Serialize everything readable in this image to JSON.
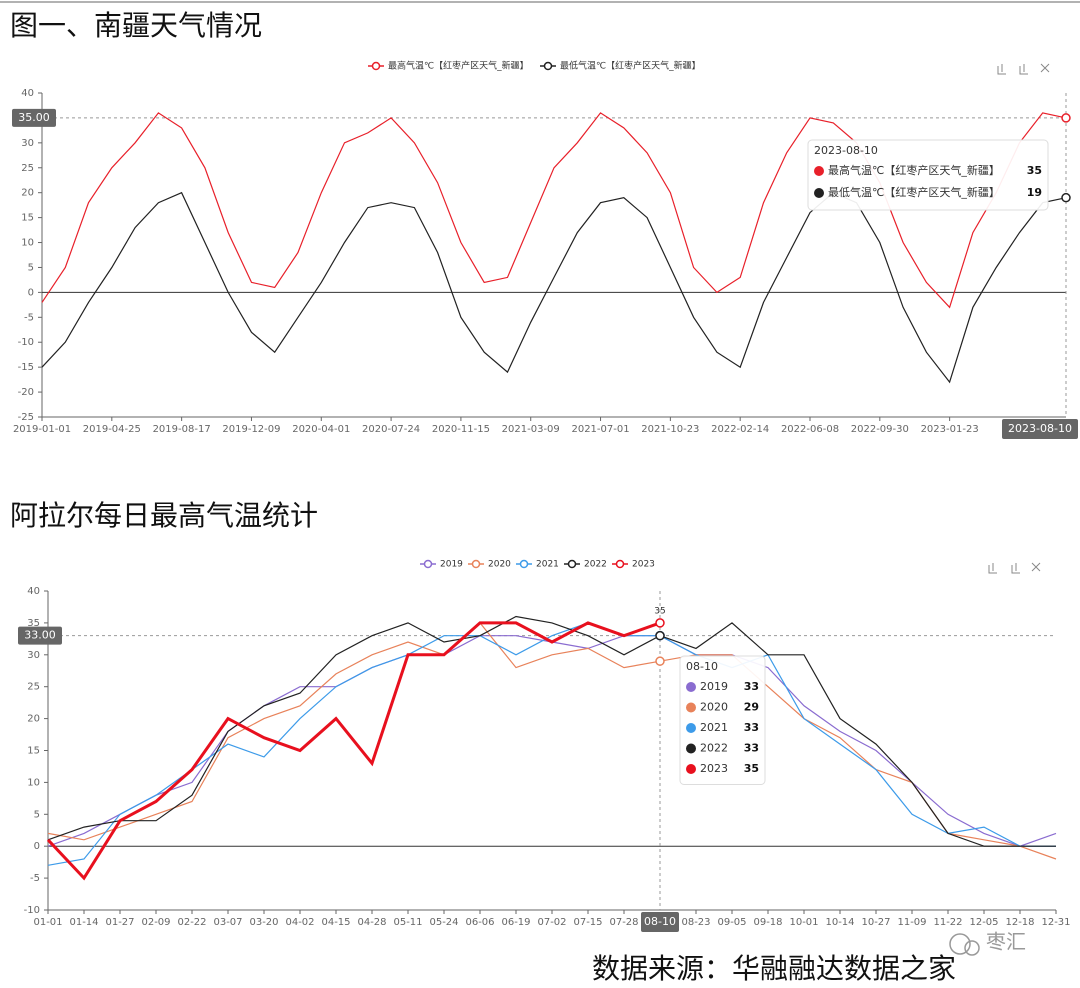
{
  "source": "数据来源：华融融达数据之家",
  "watermark": "枣汇",
  "chart_data": [
    {
      "type": "line",
      "title": "图一、南疆天气情况",
      "categories": [
        "2019-01-01",
        null,
        null,
        "2019-04-25",
        null,
        null,
        "2019-08-17",
        null,
        null,
        "2019-12-09",
        null,
        null,
        "2020-04-01",
        null,
        null,
        "2020-07-24",
        null,
        null,
        "2020-11-15",
        null,
        null,
        "2021-03-09",
        null,
        null,
        "2021-07-01",
        null,
        null,
        "2021-10-23",
        null,
        null,
        "2022-02-14",
        null,
        null,
        "2022-06-08",
        null,
        null,
        "2022-09-30",
        null,
        null,
        "2023-01-23",
        null,
        null,
        null,
        null,
        "2023-08-10"
      ],
      "series": [
        {
          "name": "最高气温℃【红枣产区天气_新疆】",
          "color": "#e8202a",
          "values": [
            -2,
            5,
            18,
            25,
            30,
            36,
            33,
            25,
            12,
            2,
            1,
            8,
            20,
            30,
            32,
            35,
            30,
            22,
            10,
            2,
            3,
            14,
            25,
            30,
            36,
            33,
            28,
            20,
            5,
            0,
            3,
            18,
            28,
            35,
            34,
            30,
            22,
            10,
            2,
            -3,
            12,
            20,
            30,
            36,
            35
          ]
        },
        {
          "name": "最低气温℃【红枣产区天气_新疆】",
          "color": "#222222",
          "values": [
            -15,
            -10,
            -2,
            5,
            13,
            18,
            20,
            10,
            0,
            -8,
            -12,
            -5,
            2,
            10,
            17,
            18,
            17,
            8,
            -5,
            -12,
            -16,
            -6,
            3,
            12,
            18,
            19,
            15,
            5,
            -5,
            -12,
            -15,
            -2,
            7,
            16,
            20,
            18,
            10,
            -3,
            -12,
            -18,
            -3,
            5,
            12,
            18,
            19
          ]
        }
      ],
      "ylim": [
        -25,
        40
      ],
      "yticks": [
        -25,
        -20,
        -15,
        -10,
        -5,
        0,
        5,
        10,
        15,
        20,
        25,
        30,
        35,
        40
      ],
      "axis_pointer": {
        "value": 35,
        "label": "35.00"
      }
    },
    {
      "type": "line",
      "title": "阿拉尔每日最高气温统计",
      "categories": [
        "01-01",
        "01-14",
        "01-27",
        "02-09",
        "02-22",
        "03-07",
        "03-20",
        "04-02",
        "04-15",
        "04-28",
        "05-11",
        "05-24",
        "06-06",
        "06-19",
        "07-02",
        "07-15",
        "07-28",
        "08-10",
        "08-23",
        "09-05",
        "09-18",
        "10-01",
        "10-14",
        "10-27",
        "11-09",
        "11-22",
        "12-05",
        "12-18",
        "12-31"
      ],
      "series": [
        {
          "name": "2019",
          "color": "#8a6cd0",
          "values": [
            0,
            2,
            5,
            8,
            10,
            18,
            22,
            25,
            25,
            28,
            30,
            30,
            33,
            33,
            32,
            31,
            33,
            33,
            30,
            30,
            28,
            22,
            18,
            15,
            10,
            5,
            2,
            0,
            2
          ]
        },
        {
          "name": "2020",
          "color": "#e8825a",
          "values": [
            2,
            1,
            3,
            5,
            7,
            17,
            20,
            22,
            27,
            30,
            32,
            30,
            35,
            28,
            30,
            31,
            28,
            29,
            30,
            30,
            25,
            20,
            17,
            12,
            10,
            2,
            1,
            0,
            -2
          ]
        },
        {
          "name": "2021",
          "color": "#3d9be9",
          "values": [
            -3,
            -2,
            5,
            8,
            12,
            16,
            14,
            20,
            25,
            28,
            30,
            33,
            33,
            30,
            33,
            35,
            33,
            33,
            30,
            28,
            30,
            20,
            16,
            12,
            5,
            2,
            3,
            0,
            0
          ]
        },
        {
          "name": "2022",
          "color": "#222222",
          "values": [
            1,
            3,
            4,
            4,
            8,
            18,
            22,
            24,
            30,
            33,
            35,
            32,
            33,
            36,
            35,
            33,
            30,
            33,
            31,
            35,
            30,
            30,
            20,
            16,
            10,
            2,
            0,
            0,
            0
          ]
        },
        {
          "name": "2023",
          "color": "#e8101e",
          "values": [
            1,
            -5,
            4,
            7,
            12,
            20,
            17,
            15,
            20,
            13,
            30,
            30,
            35,
            35,
            32,
            35,
            33,
            35,
            null,
            null,
            null,
            null,
            null,
            null,
            null,
            null,
            null,
            null,
            null
          ]
        }
      ],
      "ylim": [
        -10,
        40
      ],
      "yticks": [
        -10,
        -5,
        0,
        5,
        10,
        15,
        20,
        25,
        30,
        35,
        40
      ],
      "axis_pointer": {
        "value": 33,
        "label": "33.00"
      }
    }
  ]
}
